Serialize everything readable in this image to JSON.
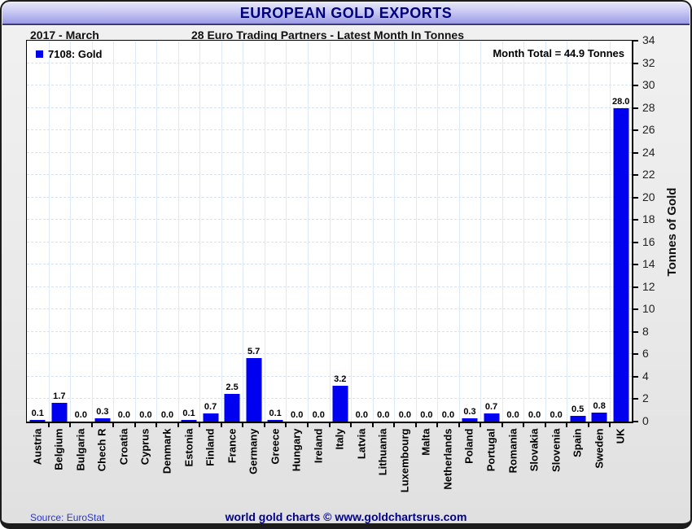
{
  "header": {
    "title": "EUROPEAN GOLD EXPORTS"
  },
  "subheader": {
    "period": "2017 - March",
    "subtitle": "28 Euro Trading Partners - Latest Month In Tonnes"
  },
  "legend": {
    "label": "7108: Gold"
  },
  "annotations": {
    "month_total": "Month Total = 44.9 Tonnes"
  },
  "footer": {
    "source": "Source: EuroStat",
    "credit": "world gold charts © www.goldchartsrus.com"
  },
  "colors": {
    "bar": "#0000f0",
    "legend_swatch": "#0000e8",
    "title_text": "#00007d",
    "title_bar_top": "#e6e6fb",
    "title_bar_bottom": "#9a9ae6",
    "grid": "#dfeaf8",
    "source_text": "#2a35c8",
    "credit_text": "#00008b"
  },
  "chart_data": {
    "type": "bar",
    "title": "EUROPEAN GOLD EXPORTS",
    "subtitle": "28 Euro Trading Partners - Latest Month In Tonnes",
    "period": "2017 - March",
    "series_name": "7108: Gold",
    "month_total_tonnes": 44.9,
    "categories": [
      "Austria",
      "Belgium",
      "Bulgaria",
      "Chech R",
      "Croatia",
      "Cyprus",
      "Denmark",
      "Estonia",
      "Finland",
      "France",
      "Germany",
      "Greece",
      "Hungary",
      "Ireland",
      "Italy",
      "Latvia",
      "Lithuania",
      "Luxembourg",
      "Malta",
      "Netherlands",
      "Poland",
      "Portugal",
      "Romania",
      "Slovakia",
      "Slovenia",
      "Spain",
      "Sweden",
      "UK"
    ],
    "values": [
      0.1,
      1.7,
      0.0,
      0.3,
      0.0,
      0.0,
      0.0,
      0.1,
      0.7,
      2.5,
      5.7,
      0.1,
      0.0,
      0.0,
      3.2,
      0.0,
      0.0,
      0.0,
      0.0,
      0.0,
      0.3,
      0.7,
      0.0,
      0.0,
      0.0,
      0.5,
      0.8,
      28.0
    ],
    "xlabel": "",
    "ylabel": "Tonnes of Gold",
    "ylim": [
      0,
      34
    ],
    "ytick_step": 2,
    "grid": true,
    "legend_position": "top-left",
    "value_labels_decimals": 1
  }
}
